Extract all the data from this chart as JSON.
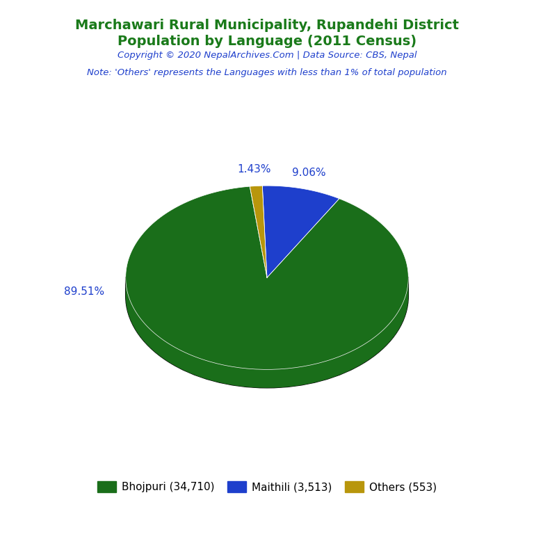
{
  "title_line1": "Marchawari Rural Municipality, Rupandehi District",
  "title_line2": "Population by Language (2011 Census)",
  "title_color": "#1a7a1a",
  "copyright_text": "Copyright © 2020 NepalArchives.Com | Data Source: CBS, Nepal",
  "copyright_color": "#1e3fcc",
  "note_text": "Note: 'Others' represents the Languages with less than 1% of total population",
  "note_color": "#1e3fcc",
  "labels": [
    "Bhojpuri (34,710)",
    "Maithili (3,513)",
    "Others (553)"
  ],
  "values": [
    34710,
    3513,
    553
  ],
  "percentages": [
    "89.51%",
    "9.06%",
    "1.43%"
  ],
  "colors": [
    "#1a6e1a",
    "#1e3fcc",
    "#b8960c"
  ],
  "shadow_color": "#0a0a0a",
  "background_color": "#ffffff",
  "pct_color": "#1e3fcc",
  "legend_text_color": "#000000",
  "startangle": 97,
  "thickness": 0.13
}
